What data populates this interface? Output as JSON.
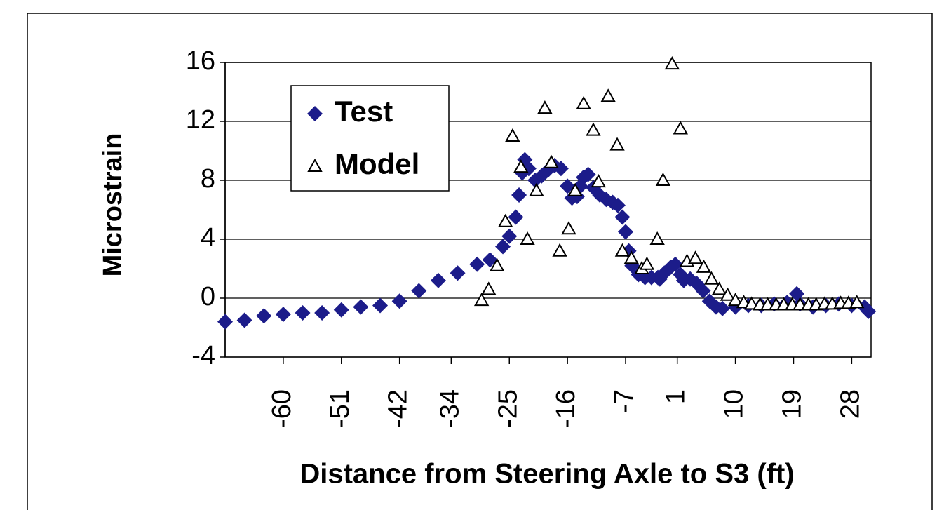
{
  "chart_data": {
    "type": "scatter",
    "x_label": "Distance from Steering Axle to S3 (ft)",
    "y_label": "Microstrain",
    "xlim": [
      -69,
      31
    ],
    "xticks": [
      -60,
      -51,
      -42,
      -34,
      -25,
      -16,
      -7,
      1,
      10,
      19,
      28
    ],
    "ylim": [
      -4,
      16
    ],
    "yticks": [
      -4,
      0,
      4,
      8,
      12,
      16
    ],
    "grid": true,
    "legend": "upper left",
    "series": [
      {
        "name": "Test",
        "color": "#1c1c8a",
        "marker": "diamond",
        "x": [
          -69,
          -66,
          -63,
          -60,
          -57,
          -54,
          -51,
          -48,
          -45,
          -42,
          -39,
          -36,
          -33,
          -30,
          -28,
          -26,
          -25,
          -24,
          -23.5,
          -23,
          -22.6,
          -22,
          -21,
          -20,
          -19,
          -18,
          -17,
          -16,
          -15.3,
          -14.5,
          -14,
          -13.5,
          -12.8,
          -12,
          -11,
          -10,
          -9,
          -8.2,
          -7.5,
          -7,
          -6.5,
          -6,
          -5,
          -4,
          -3,
          -2,
          -1.7,
          -1,
          0,
          0.7,
          1.5,
          2,
          3,
          4,
          5,
          6,
          7,
          8,
          10,
          12,
          14,
          16,
          18,
          19.5,
          20,
          22,
          24,
          26,
          28,
          30,
          30.6
        ],
        "values": [
          -1.6,
          -1.5,
          -1.2,
          -1.1,
          -1.0,
          -1.0,
          -0.8,
          -0.6,
          -0.5,
          -0.2,
          0.5,
          1.2,
          1.7,
          2.3,
          2.6,
          3.5,
          4.2,
          5.5,
          7,
          8.5,
          9.4,
          8.8,
          8.0,
          8.3,
          8.7,
          9.0,
          8.8,
          7.6,
          6.8,
          6.9,
          7.6,
          8.2,
          8.4,
          7.5,
          7.0,
          6.7,
          6.5,
          6.3,
          5.5,
          4.5,
          3.2,
          2.2,
          1.6,
          1.4,
          1.4,
          1.4,
          1.3,
          1.7,
          2.1,
          2.3,
          1.6,
          1.2,
          1.3,
          1.0,
          0.5,
          -0.2,
          -0.6,
          -0.7,
          -0.6,
          -0.5,
          -0.5,
          -0.4,
          -0.3,
          0.3,
          -0.4,
          -0.6,
          -0.5,
          -0.4,
          -0.5,
          -0.6,
          -0.9
        ]
      },
      {
        "name": "Model",
        "color": "#000000",
        "marker": "triangle",
        "x": [
          -29.3,
          -28.2,
          -26.9,
          -25.6,
          -24.5,
          -23.2,
          -22.2,
          -20.8,
          -19.5,
          -18.5,
          -17.2,
          -15.8,
          -14.8,
          -13.5,
          -12.0,
          -11.2,
          -9.7,
          -8.3,
          -7.5,
          -6.1,
          -4.5,
          -3.7,
          -2.1,
          -1.2,
          0.2,
          1.5,
          2.5,
          3.8,
          5.1,
          6.3,
          7.5,
          8.8,
          10.0,
          11.3,
          12.5,
          13.8,
          15.0,
          16.3,
          17.5,
          18.8,
          20.0,
          21.3,
          22.5,
          23.8,
          25.0,
          26.3,
          27.5,
          28.8
        ],
        "values": [
          -0.15,
          0.6,
          2.2,
          5.2,
          11.0,
          8.9,
          4.0,
          7.3,
          12.9,
          9.2,
          3.2,
          4.7,
          7.3,
          13.2,
          11.4,
          7.9,
          13.7,
          10.4,
          3.2,
          2.7,
          2.0,
          2.3,
          4.0,
          8.0,
          15.9,
          11.5,
          2.5,
          2.7,
          2.1,
          1.3,
          0.6,
          0.2,
          -0.15,
          -0.3,
          -0.4,
          -0.45,
          -0.45,
          -0.45,
          -0.45,
          -0.45,
          -0.45,
          -0.45,
          -0.45,
          -0.4,
          -0.4,
          -0.35,
          -0.35,
          -0.3
        ]
      }
    ]
  }
}
